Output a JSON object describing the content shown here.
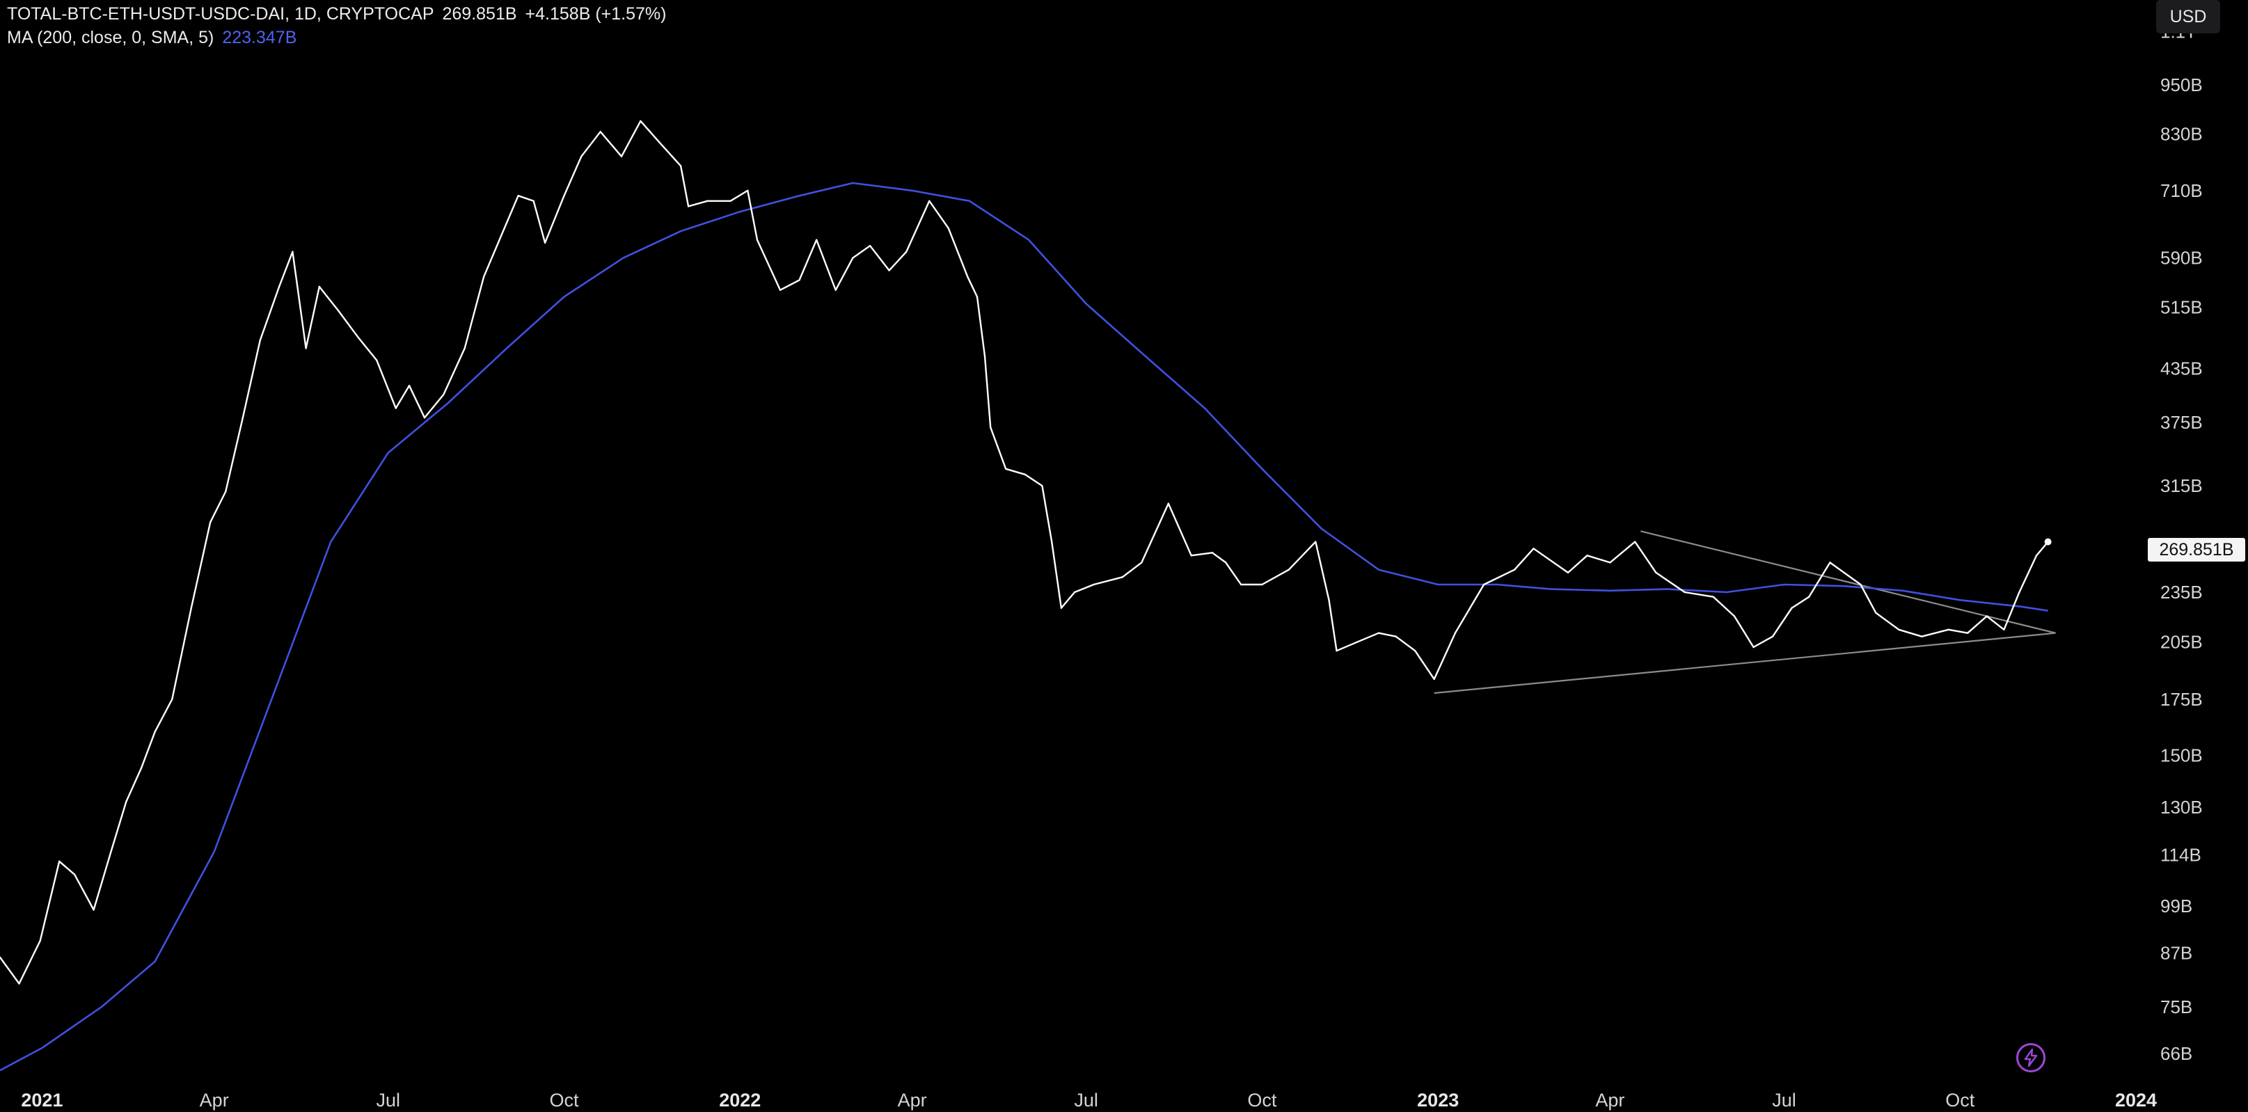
{
  "header": {
    "symbol": "TOTAL-BTC-ETH-USDT-USDC-DAI, 1D, CRYPTOCAP",
    "last": "269.851B",
    "change": "+4.158B (+1.57%)",
    "indicator": "MA (200, close, 0, SMA, 5)",
    "indicator_value": "223.347B"
  },
  "currency": "USD",
  "last_price_tag": "269.851B",
  "colors": {
    "background": "#000000",
    "price_line": "#ffffff",
    "ma_line": "#3f51e0",
    "trendline": "#8c8c8c",
    "price_tag_bg": "#f4f4f4",
    "flash_icon": "#9b47d6"
  },
  "icons": {
    "flash": "lightning-bolt-icon"
  },
  "chart_data": {
    "type": "line",
    "y_scale": "log",
    "ylim": [
      61,
      1200
    ],
    "xlim": [
      "2020-12-10",
      "2024-01-05"
    ],
    "grid": false,
    "y_ticks": [
      {
        "label": "1.1T",
        "value": 1100
      },
      {
        "label": "950B",
        "value": 950
      },
      {
        "label": "830B",
        "value": 830
      },
      {
        "label": "710B",
        "value": 710
      },
      {
        "label": "590B",
        "value": 590
      },
      {
        "label": "515B",
        "value": 515
      },
      {
        "label": "435B",
        "value": 435
      },
      {
        "label": "375B",
        "value": 375
      },
      {
        "label": "315B",
        "value": 315
      },
      {
        "label": "235B",
        "value": 235
      },
      {
        "label": "205B",
        "value": 205
      },
      {
        "label": "175B",
        "value": 175
      },
      {
        "label": "150B",
        "value": 150
      },
      {
        "label": "130B",
        "value": 130
      },
      {
        "label": "114B",
        "value": 114
      },
      {
        "label": "99B",
        "value": 99
      },
      {
        "label": "87B",
        "value": 87
      },
      {
        "label": "75B",
        "value": 75
      },
      {
        "label": "66B",
        "value": 66
      }
    ],
    "x_ticks": [
      {
        "label": "2021",
        "date": "2021-01-01",
        "year": true
      },
      {
        "label": "Apr",
        "date": "2021-04-01",
        "year": false
      },
      {
        "label": "Jul",
        "date": "2021-07-01",
        "year": false
      },
      {
        "label": "Oct",
        "date": "2021-10-01",
        "year": false
      },
      {
        "label": "2022",
        "date": "2022-01-01",
        "year": true
      },
      {
        "label": "Apr",
        "date": "2022-04-01",
        "year": false
      },
      {
        "label": "Jul",
        "date": "2022-07-01",
        "year": false
      },
      {
        "label": "Oct",
        "date": "2022-10-01",
        "year": false
      },
      {
        "label": "2023",
        "date": "2023-01-01",
        "year": true
      },
      {
        "label": "Apr",
        "date": "2023-04-01",
        "year": false
      },
      {
        "label": "Jul",
        "date": "2023-07-01",
        "year": false
      },
      {
        "label": "Oct",
        "date": "2023-10-01",
        "year": false
      },
      {
        "label": "2024",
        "date": "2024-01-01",
        "year": true
      }
    ],
    "series": [
      {
        "name": "TOTAL-BTC-ETH-USDT-USDC-DAI",
        "x": [
          "2020-12-10",
          "2020-12-20",
          "2020-12-31",
          "2021-01-10",
          "2021-01-18",
          "2021-01-28",
          "2021-02-06",
          "2021-02-14",
          "2021-02-22",
          "2021-03-01",
          "2021-03-10",
          "2021-03-20",
          "2021-03-30",
          "2021-04-07",
          "2021-04-16",
          "2021-04-25",
          "2021-05-05",
          "2021-05-12",
          "2021-05-19",
          "2021-05-26",
          "2021-06-05",
          "2021-06-15",
          "2021-06-25",
          "2021-07-05",
          "2021-07-12",
          "2021-07-20",
          "2021-07-30",
          "2021-08-10",
          "2021-08-20",
          "2021-09-01",
          "2021-09-07",
          "2021-09-15",
          "2021-09-21",
          "2021-10-01",
          "2021-10-10",
          "2021-10-20",
          "2021-10-31",
          "2021-11-10",
          "2021-11-20",
          "2021-12-01",
          "2021-12-05",
          "2021-12-15",
          "2021-12-27",
          "2022-01-05",
          "2022-01-10",
          "2022-01-22",
          "2022-02-01",
          "2022-02-10",
          "2022-02-20",
          "2022-03-01",
          "2022-03-10",
          "2022-03-20",
          "2022-03-29",
          "2022-04-10",
          "2022-04-20",
          "2022-04-30",
          "2022-05-05",
          "2022-05-09",
          "2022-05-12",
          "2022-05-20",
          "2022-05-30",
          "2022-06-08",
          "2022-06-13",
          "2022-06-18",
          "2022-06-25",
          "2022-07-05",
          "2022-07-20",
          "2022-07-30",
          "2022-08-13",
          "2022-08-25",
          "2022-09-05",
          "2022-09-12",
          "2022-09-20",
          "2022-10-01",
          "2022-10-15",
          "2022-10-29",
          "2022-11-05",
          "2022-11-09",
          "2022-11-20",
          "2022-12-01",
          "2022-12-10",
          "2022-12-20",
          "2022-12-30",
          "2023-01-10",
          "2023-01-25",
          "2023-02-10",
          "2023-02-20",
          "2023-03-10",
          "2023-03-20",
          "2023-04-01",
          "2023-04-14",
          "2023-04-25",
          "2023-05-10",
          "2023-05-25",
          "2023-06-05",
          "2023-06-15",
          "2023-06-25",
          "2023-07-05",
          "2023-07-14",
          "2023-07-25",
          "2023-08-10",
          "2023-08-18",
          "2023-08-30",
          "2023-09-11",
          "2023-09-25",
          "2023-10-05",
          "2023-10-15",
          "2023-10-24",
          "2023-11-01",
          "2023-11-10",
          "2023-11-16"
        ],
        "values": [
          86,
          80,
          90,
          112,
          108,
          98,
          115,
          132,
          145,
          160,
          175,
          225,
          285,
          310,
          380,
          470,
          545,
          600,
          460,
          545,
          510,
          475,
          445,
          390,
          415,
          380,
          405,
          460,
          560,
          650,
          700,
          690,
          615,
          700,
          780,
          835,
          780,
          860,
          810,
          760,
          680,
          690,
          690,
          710,
          620,
          540,
          555,
          620,
          540,
          590,
          610,
          570,
          600,
          690,
          640,
          560,
          530,
          450,
          370,
          330,
          325,
          315,
          270,
          225,
          235,
          240,
          245,
          255,
          300,
          260,
          262,
          255,
          240,
          240,
          250,
          270,
          230,
          200,
          205,
          210,
          208,
          200,
          185,
          210,
          240,
          250,
          265,
          248,
          260,
          255,
          270,
          248,
          235,
          232,
          220,
          202,
          208,
          225,
          232,
          255,
          240,
          222,
          212,
          208,
          212,
          210,
          220,
          212,
          235,
          260,
          270
        ]
      },
      {
        "name": "MA (200, close, 0, SMA, 5)",
        "x": [
          "2020-12-10",
          "2021-01-01",
          "2021-02-01",
          "2021-03-01",
          "2021-04-01",
          "2021-05-01",
          "2021-06-01",
          "2021-07-01",
          "2021-08-01",
          "2021-09-01",
          "2021-10-01",
          "2021-11-01",
          "2021-12-01",
          "2022-01-01",
          "2022-02-01",
          "2022-03-01",
          "2022-04-01",
          "2022-05-01",
          "2022-06-01",
          "2022-07-01",
          "2022-08-01",
          "2022-09-01",
          "2022-10-01",
          "2022-11-01",
          "2022-12-01",
          "2023-01-01",
          "2023-02-01",
          "2023-03-01",
          "2023-04-01",
          "2023-05-01",
          "2023-06-01",
          "2023-07-01",
          "2023-08-01",
          "2023-09-01",
          "2023-10-01",
          "2023-11-01",
          "2023-11-16"
        ],
        "values": [
          63,
          67,
          75,
          85,
          115,
          175,
          270,
          345,
          395,
          460,
          530,
          590,
          635,
          670,
          700,
          725,
          710,
          690,
          620,
          520,
          450,
          390,
          330,
          280,
          250,
          240,
          240,
          237,
          236,
          237,
          235,
          240,
          239,
          236,
          230,
          226,
          223.347
        ]
      }
    ],
    "trendlines": [
      {
        "from": {
          "x": "2023-04-17",
          "y": 278
        },
        "to": {
          "x": "2023-11-20",
          "y": 210
        }
      },
      {
        "from": {
          "x": "2022-12-30",
          "y": 178
        },
        "to": {
          "x": "2023-11-20",
          "y": 210
        }
      }
    ]
  }
}
